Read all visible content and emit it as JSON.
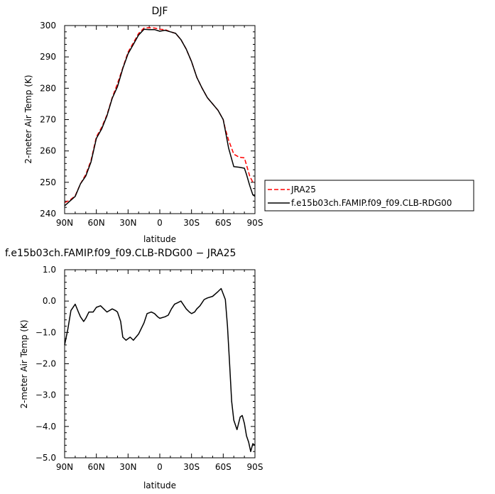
{
  "chart_data": [
    {
      "type": "line",
      "title": "DJF",
      "xlabel": "latitude",
      "ylabel": "2-meter Air Temp (K)",
      "xlim": [
        90,
        -90
      ],
      "ylim": [
        240,
        300
      ],
      "x_ticks": [
        90,
        60,
        30,
        0,
        -30,
        -60,
        -90
      ],
      "x_tick_labels": [
        "90N",
        "60N",
        "30N",
        "0",
        "30S",
        "60S",
        "90S"
      ],
      "y_ticks": [
        240,
        250,
        260,
        270,
        280,
        290,
        300
      ],
      "y_tick_labels": [
        "240",
        "250",
        "260",
        "270",
        "280",
        "290",
        "300"
      ],
      "legend_position": "right",
      "series": [
        {
          "name": "JRA25",
          "color": "#ff0000",
          "dash": "dashed",
          "x": [
            90,
            85,
            80,
            75,
            70,
            65,
            60,
            55,
            50,
            45,
            40,
            35,
            30,
            25,
            20,
            15,
            10,
            5,
            0,
            -5,
            -10,
            -15,
            -20,
            -25,
            -30,
            -35,
            -40,
            -45,
            -50,
            -55,
            -60,
            -62,
            -65,
            -70,
            -75,
            -80,
            -82,
            -85,
            -88,
            -90
          ],
          "y": [
            243.5,
            244.3,
            245.7,
            249.5,
            252.5,
            257,
            264.5,
            267.5,
            271.5,
            277,
            281.5,
            286.5,
            291.5,
            294.5,
            297.5,
            299.2,
            299.3,
            299.2,
            298.8,
            298.7,
            298,
            297.5,
            295.5,
            292.5,
            288.5,
            283.5,
            280,
            277,
            275,
            273,
            270,
            267,
            263.5,
            259,
            258,
            257.8,
            255.5,
            252,
            250,
            249.8
          ]
        },
        {
          "name": "f.e15b03ch.FAMIP.f09_f09.CLB-RDG00",
          "color": "#000000",
          "dash": "solid",
          "x": [
            90,
            85,
            80,
            75,
            70,
            65,
            60,
            55,
            50,
            45,
            40,
            35,
            30,
            25,
            20,
            15,
            10,
            5,
            0,
            -5,
            -10,
            -15,
            -20,
            -25,
            -30,
            -35,
            -40,
            -45,
            -50,
            -55,
            -60,
            -62,
            -65,
            -70,
            -75,
            -80,
            -82,
            -85,
            -88,
            -90
          ],
          "y": [
            242.5,
            244,
            245.5,
            249.5,
            252,
            256.5,
            264,
            267,
            271.2,
            276.8,
            280.5,
            286.3,
            291,
            294,
            297,
            298.8,
            298.7,
            298.7,
            298.2,
            298.5,
            298,
            297.5,
            295.5,
            292.5,
            288.5,
            283.5,
            280,
            277,
            275,
            273,
            270,
            266.5,
            261,
            255,
            254.8,
            254.5,
            252.5,
            249,
            246,
            245.5
          ]
        }
      ]
    },
    {
      "type": "line",
      "title": "f.e15b03ch.FAMIP.f09_f09.CLB-RDG00 − JRA25",
      "xlabel": "latitude",
      "ylabel": "2-meter Air Temp (K)",
      "xlim": [
        90,
        -90
      ],
      "ylim": [
        -5,
        1
      ],
      "x_ticks": [
        90,
        60,
        30,
        0,
        -30,
        -60,
        -90
      ],
      "x_tick_labels": [
        "90N",
        "60N",
        "30N",
        "0",
        "30S",
        "60S",
        "90S"
      ],
      "y_ticks": [
        -5,
        -4,
        -3,
        -2,
        -1,
        0,
        1
      ],
      "y_tick_labels": [
        "−5.0",
        "−4.0",
        "−3.0",
        "−2.0",
        "−1.0",
        "0.0",
        "1.0"
      ],
      "series": [
        {
          "color": "#000000",
          "dash": "solid",
          "x": [
            90,
            87,
            84,
            80,
            77,
            75,
            72,
            70,
            67,
            63,
            60,
            56,
            53,
            50,
            45,
            42,
            40,
            37,
            35,
            32,
            28,
            25,
            20,
            15,
            12,
            8,
            5,
            2,
            0,
            -5,
            -8,
            -11,
            -14,
            -17,
            -20,
            -25,
            -28,
            -30,
            -33,
            -35,
            -38,
            -42,
            -45,
            -50,
            -55,
            -58,
            -62,
            -64,
            -66,
            -68,
            -70,
            -73,
            -76,
            -78,
            -80,
            -82,
            -84,
            -86,
            -88,
            -90
          ],
          "y": [
            -1.4,
            -0.9,
            -0.3,
            -0.1,
            -0.35,
            -0.5,
            -0.65,
            -0.55,
            -0.35,
            -0.35,
            -0.2,
            -0.15,
            -0.25,
            -0.35,
            -0.25,
            -0.3,
            -0.35,
            -0.65,
            -1.15,
            -1.25,
            -1.15,
            -1.25,
            -1.05,
            -0.7,
            -0.4,
            -0.35,
            -0.4,
            -0.5,
            -0.55,
            -0.5,
            -0.45,
            -0.25,
            -0.1,
            -0.05,
            0.0,
            -0.25,
            -0.35,
            -0.4,
            -0.35,
            -0.25,
            -0.15,
            0.05,
            0.1,
            0.15,
            0.3,
            0.4,
            0.05,
            -0.8,
            -2.0,
            -3.2,
            -3.8,
            -4.1,
            -3.7,
            -3.65,
            -3.9,
            -4.3,
            -4.5,
            -4.8,
            -4.55,
            -4.6
          ]
        }
      ]
    }
  ]
}
